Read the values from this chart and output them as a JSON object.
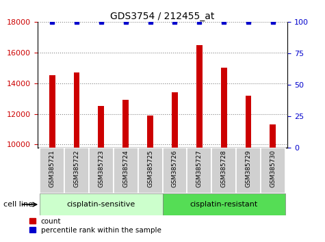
{
  "title": "GDS3754 / 212455_at",
  "samples": [
    "GSM385721",
    "GSM385722",
    "GSM385723",
    "GSM385724",
    "GSM385725",
    "GSM385726",
    "GSM385727",
    "GSM385728",
    "GSM385729",
    "GSM385730"
  ],
  "counts": [
    14500,
    14700,
    12500,
    12900,
    11900,
    13400,
    16500,
    15000,
    13200,
    11300
  ],
  "percentile_ranks": [
    100,
    100,
    100,
    100,
    100,
    100,
    100,
    100,
    100,
    100
  ],
  "bar_color": "#cc0000",
  "dot_color": "#0000cc",
  "ylim_left": [
    9800,
    18000
  ],
  "ylim_right": [
    0,
    100
  ],
  "yticks_left": [
    10000,
    12000,
    14000,
    16000,
    18000
  ],
  "yticks_right": [
    0,
    25,
    50,
    75,
    100
  ],
  "group1_label": "cisplatin-sensitive",
  "group2_label": "cisplatin-resistant",
  "n_group1": 5,
  "n_group2": 5,
  "group1_color": "#ccffcc",
  "group2_color": "#55dd55",
  "cell_line_label": "cell line",
  "legend_count_label": "count",
  "legend_pct_label": "percentile rank within the sample",
  "title_fontsize": 10,
  "tick_color_left": "#cc0000",
  "tick_color_right": "#0000cc",
  "bar_width": 0.25,
  "xtick_bg_color": "#d0d0d0",
  "xtick_border_color": "#ffffff",
  "sample_fontsize": 6.5,
  "legend_fontsize": 7.5,
  "group_fontsize": 8
}
